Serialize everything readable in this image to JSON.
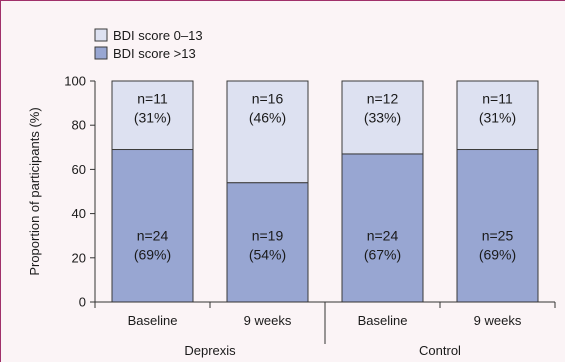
{
  "chart_data": {
    "type": "bar",
    "stacked": true,
    "ylabel": "Proportion of participants (%)",
    "ylim": [
      0,
      100
    ],
    "yticks": [
      0,
      20,
      40,
      60,
      80,
      100
    ],
    "categories": [
      "Baseline",
      "9 weeks",
      "Baseline",
      "9 weeks"
    ],
    "groups": [
      {
        "name": "Deprexis",
        "categories": [
          0,
          1
        ]
      },
      {
        "name": "Control",
        "categories": [
          2,
          3
        ]
      }
    ],
    "series": [
      {
        "name": "BDI score >13",
        "color": "#98a6d2",
        "values": [
          69,
          54,
          67,
          69
        ],
        "labels": [
          [
            "n=24",
            "(69%)"
          ],
          [
            "n=19",
            "(54%)"
          ],
          [
            "n=24",
            "(67%)"
          ],
          [
            "n=25",
            "(69%)"
          ]
        ]
      },
      {
        "name": "BDI score 0–13",
        "color": "#dde1f1",
        "values": [
          31,
          46,
          33,
          31
        ],
        "labels": [
          [
            "n=11",
            "(31%)"
          ],
          [
            "n=16",
            "(46%)"
          ],
          [
            "n=12",
            "(33%)"
          ],
          [
            "n=11",
            "(31%)"
          ]
        ]
      }
    ],
    "legend": {
      "position": "top-left",
      "order": [
        1,
        0
      ]
    },
    "grid": false
  }
}
